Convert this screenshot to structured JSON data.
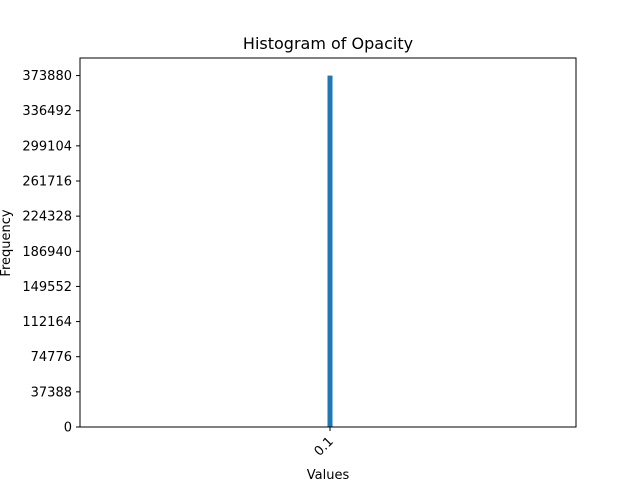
{
  "chart_data": {
    "type": "bar",
    "title": "Histogram of Opacity",
    "xlabel": "Values",
    "ylabel": "Frequency",
    "categories": [
      "0.1"
    ],
    "values": [
      373880
    ],
    "ylim": [
      0,
      392574
    ],
    "yticks": [
      "0",
      "37388",
      "74776",
      "112164",
      "149552",
      "186940",
      "224328",
      "261716",
      "299104",
      "336492",
      "373880"
    ],
    "ytick_values": [
      0,
      37388,
      74776,
      112164,
      149552,
      186940,
      224328,
      261716,
      299104,
      336492,
      373880
    ],
    "xticks": [
      "0.1"
    ],
    "grid": false,
    "legend": "none",
    "bar_color": "#1f77b4"
  }
}
